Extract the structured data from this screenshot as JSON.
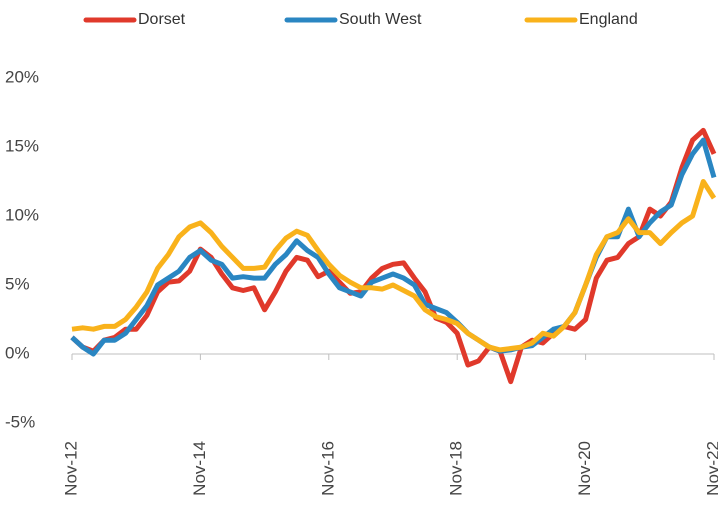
{
  "chart_data": {
    "type": "line",
    "categories": [
      "Nov-12",
      null,
      null,
      null,
      null,
      null,
      null,
      null,
      null,
      null,
      null,
      null,
      "Nov-14",
      null,
      null,
      null,
      null,
      null,
      null,
      null,
      null,
      null,
      null,
      null,
      "Nov-16",
      null,
      null,
      null,
      null,
      null,
      null,
      null,
      null,
      null,
      null,
      null,
      "Nov-18",
      null,
      null,
      null,
      null,
      null,
      null,
      null,
      null,
      null,
      null,
      null,
      "Nov-20",
      null,
      null,
      null,
      null,
      null,
      null,
      null,
      null,
      null,
      null,
      null,
      "Nov-22"
    ],
    "series": [
      {
        "name": "Dorset",
        "color": "#e0392b",
        "values": [
          1.2,
          0.5,
          0.2,
          1.0,
          1.2,
          1.8,
          1.8,
          2.8,
          4.5,
          5.2,
          5.3,
          6.0,
          7.6,
          7.0,
          5.8,
          4.8,
          4.6,
          4.8,
          3.2,
          4.5,
          6.0,
          7.0,
          6.8,
          5.6,
          6.0,
          5.2,
          4.4,
          4.5,
          5.5,
          6.2,
          6.5,
          6.6,
          5.5,
          4.5,
          2.6,
          2.3,
          1.5,
          -0.8,
          -0.5,
          0.5,
          0.2,
          -2.0,
          0.5,
          1.0,
          0.8,
          1.5,
          2.0,
          1.8,
          2.5,
          5.5,
          6.8,
          7.0,
          8.0,
          8.5,
          10.5,
          10.0,
          11.0,
          13.5,
          15.5,
          16.2,
          14.5
        ]
      },
      {
        "name": "South West",
        "color": "#2a86c2",
        "values": [
          1.2,
          0.5,
          0,
          1.0,
          1.0,
          1.5,
          2.5,
          3.5,
          5.0,
          5.5,
          6.0,
          7.0,
          7.5,
          6.8,
          6.5,
          5.5,
          5.6,
          5.5,
          5.5,
          6.5,
          7.2,
          8.2,
          7.5,
          7.0,
          5.8,
          4.8,
          4.5,
          4.2,
          5.2,
          5.5,
          5.8,
          5.5,
          5.0,
          3.6,
          3.3,
          3.0,
          2.3,
          1.5,
          1.0,
          0.5,
          0.2,
          0.3,
          0.5,
          0.6,
          1.2,
          1.8,
          2.0,
          3.0,
          5.0,
          7.0,
          8.5,
          8.5,
          10.5,
          8.5,
          9.5,
          10.3,
          10.8,
          13.0,
          14.5,
          15.5,
          12.8
        ]
      },
      {
        "name": "England",
        "color": "#f9b21b",
        "values": [
          1.8,
          1.9,
          1.8,
          2.0,
          2.0,
          2.5,
          3.4,
          4.5,
          6.2,
          7.2,
          8.5,
          9.2,
          9.5,
          8.8,
          7.8,
          7.0,
          6.2,
          6.2,
          6.3,
          7.5,
          8.4,
          8.9,
          8.6,
          7.5,
          6.5,
          5.7,
          5.2,
          4.8,
          4.8,
          4.7,
          5.0,
          4.6,
          4.2,
          3.2,
          2.7,
          2.5,
          2.2,
          1.5,
          1.0,
          0.5,
          0.3,
          0.4,
          0.5,
          0.8,
          1.5,
          1.3,
          2.0,
          3.0,
          5.0,
          7.2,
          8.5,
          8.8,
          9.8,
          8.8,
          8.8,
          8.0,
          8.8,
          9.5,
          10.0,
          12.5,
          11.3
        ]
      }
    ],
    "ylim": [
      -5,
      20
    ],
    "yticks": [
      {
        "value": -5,
        "label": "-5%"
      },
      {
        "value": 0,
        "label": "0%"
      },
      {
        "value": 5,
        "label": "5%"
      },
      {
        "value": 10,
        "label": "10%"
      },
      {
        "value": 15,
        "label": "15%"
      },
      {
        "value": 20,
        "label": "20%"
      }
    ],
    "legend": "top"
  }
}
